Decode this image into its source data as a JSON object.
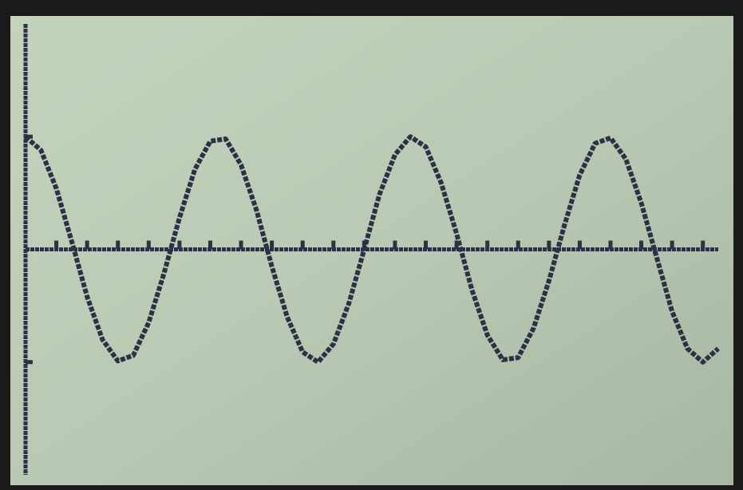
{
  "chart_data": {
    "type": "line",
    "x": [
      0,
      0.5,
      1,
      1.5,
      2,
      2.5,
      3,
      3.5,
      4,
      4.5,
      5,
      5.5,
      6,
      6.5,
      7,
      7.5,
      8,
      8.5,
      9,
      9.5,
      10,
      10.5,
      11,
      11.5,
      12,
      12.5,
      13,
      13.5,
      14,
      14.5,
      15,
      15.5,
      16,
      16.5,
      17,
      17.5,
      18,
      18.5,
      19,
      19.5,
      20,
      20.5,
      21,
      21.5,
      22,
      22.5
    ],
    "values": [
      1.0,
      0.88,
      0.54,
      0.07,
      -0.42,
      -0.8,
      -0.99,
      -0.94,
      -0.65,
      -0.21,
      0.28,
      0.71,
      0.96,
      0.98,
      0.75,
      0.35,
      -0.15,
      -0.6,
      -0.91,
      -1.0,
      -0.84,
      -0.48,
      0.0,
      0.49,
      0.84,
      1.0,
      0.91,
      0.59,
      0.14,
      -0.36,
      -0.76,
      -0.98,
      -0.96,
      -0.7,
      -0.28,
      0.21,
      0.66,
      0.94,
      0.99,
      0.8,
      0.41,
      -0.07,
      -0.55,
      -0.88,
      -1.0,
      -0.88
    ],
    "color": "#2b3244",
    "xlim": [
      0,
      22.5
    ],
    "xticks": [
      1,
      2,
      3,
      4,
      5,
      6,
      7,
      8,
      9,
      10,
      11,
      12,
      13,
      14,
      15,
      16,
      17,
      18,
      19,
      20,
      21,
      22
    ],
    "ylim": [
      -2,
      2
    ],
    "yticks": [
      -1,
      1
    ]
  }
}
